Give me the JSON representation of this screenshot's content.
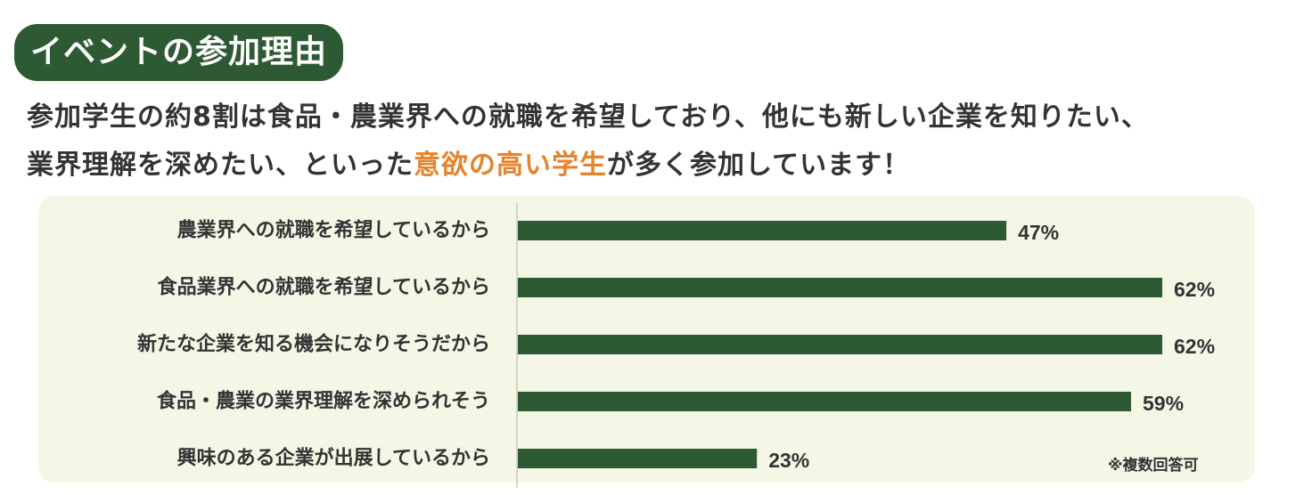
{
  "title": "イベントの参加理由",
  "lead": {
    "line1": "参加学生の約8割は食品・農業界への就職を希望しており、他にも新しい企業を知りたい、",
    "line2_before": "業界理解を深めたい、といった",
    "line2_highlight": "意欲の高い学生",
    "line2_after": "が多く参加しています！"
  },
  "note": "※複数回答可",
  "colors": {
    "bar": "#2d5a33",
    "highlight": "#e8822b",
    "panel": "#f4f6e6",
    "title_bg": "#2d5a33"
  },
  "chart_data": {
    "type": "bar",
    "orientation": "horizontal",
    "categories": [
      "農業界への就職を希望しているから",
      "食品業界への就職を希望しているから",
      "新たな企業を知る機会になりそうだから",
      "食品・農業の業界理解を深められそう",
      "興味のある企業が出展しているから"
    ],
    "values": [
      47,
      62,
      62,
      59,
      23
    ],
    "value_labels": [
      "47%",
      "62%",
      "62%",
      "59%",
      "23%"
    ],
    "unit": "%",
    "xlim": [
      0,
      62
    ],
    "grid": false
  }
}
